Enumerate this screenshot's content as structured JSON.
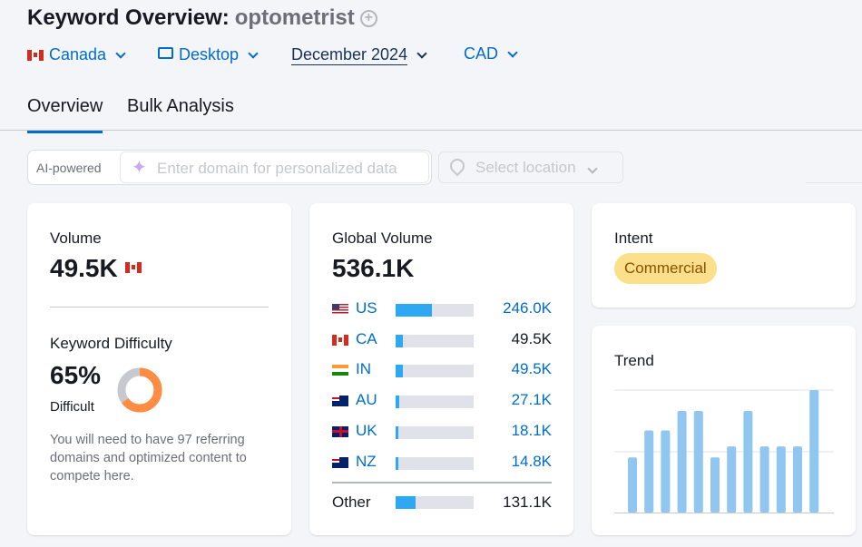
{
  "header": {
    "title": "Keyword Overview:",
    "keyword": "optometrist"
  },
  "filters": {
    "country": "Canada",
    "device": "Desktop",
    "date": "December 2024",
    "currency": "CAD"
  },
  "tabs": [
    {
      "label": "Overview",
      "active": true
    },
    {
      "label": "Bulk Analysis",
      "active": false
    }
  ],
  "ai": {
    "label": "AI-powered",
    "placeholder": "Enter domain for personalized data",
    "location_placeholder": "Select location"
  },
  "volume": {
    "label": "Volume",
    "value": "49.5K"
  },
  "kd": {
    "label": "Keyword Difficulty",
    "value": "65%",
    "level": "Difficult",
    "percent": 65,
    "color": "#ff8c43",
    "description": "You will need to have 97 referring domains and optimized content to compete here."
  },
  "global": {
    "label": "Global Volume",
    "value": "536.1K",
    "rows": [
      {
        "code": "US",
        "flag": "us",
        "value": "246.0K",
        "share": 0.46,
        "link": true
      },
      {
        "code": "CA",
        "flag": "ca",
        "value": "49.5K",
        "share": 0.09,
        "link": false
      },
      {
        "code": "IN",
        "flag": "in",
        "value": "49.5K",
        "share": 0.09,
        "link": true
      },
      {
        "code": "AU",
        "flag": "au",
        "value": "27.1K",
        "share": 0.05,
        "link": true
      },
      {
        "code": "UK",
        "flag": "uk",
        "value": "18.1K",
        "share": 0.04,
        "link": true
      },
      {
        "code": "NZ",
        "flag": "nz",
        "value": "14.8K",
        "share": 0.03,
        "link": true
      }
    ],
    "other": {
      "label": "Other",
      "value": "131.1K",
      "share": 0.25
    }
  },
  "intent": {
    "label": "Intent",
    "value": "Commercial"
  },
  "trend": {
    "label": "Trend",
    "relative_values": [
      0.45,
      0.67,
      0.67,
      0.83,
      0.83,
      0.45,
      0.54,
      0.83,
      0.54,
      0.54,
      0.54,
      1.0
    ],
    "color": "#90c6ef"
  }
}
